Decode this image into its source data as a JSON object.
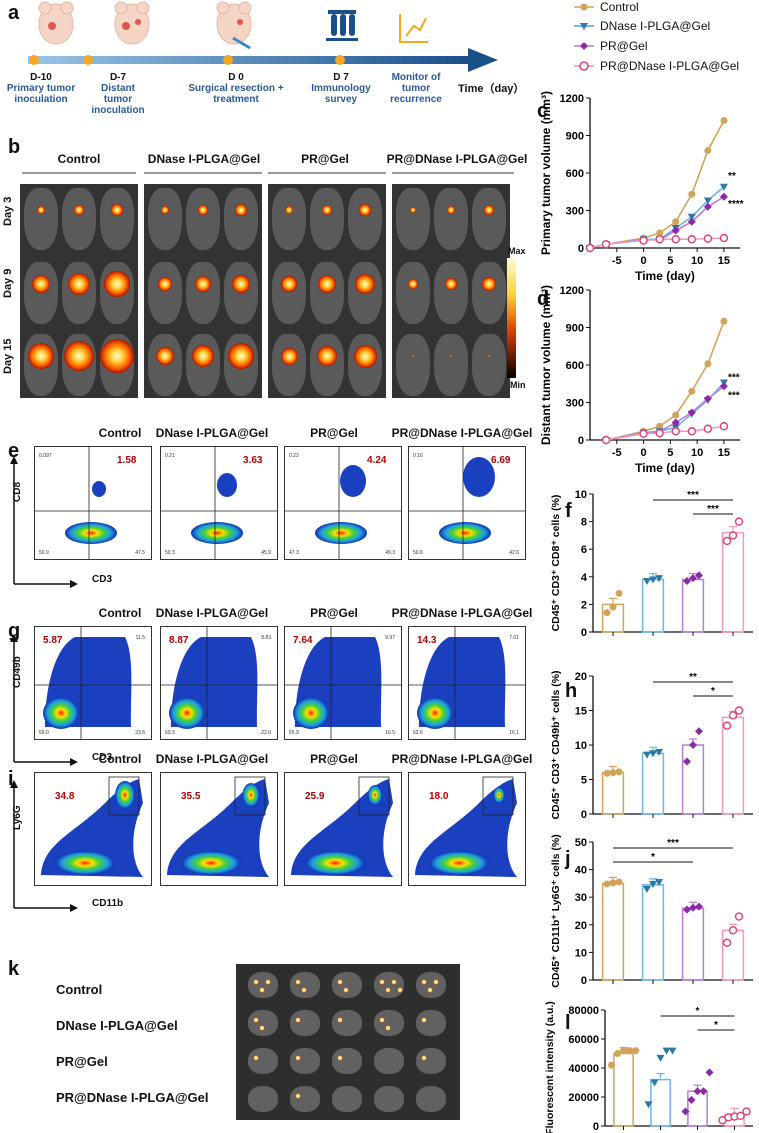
{
  "colors": {
    "control": "#d2a35a",
    "dnase": "#4aa0d8",
    "pr": "#8a2aa8",
    "combo": "#e0407a",
    "pct_red": "#b40000",
    "timeline": "#2a6aa8"
  },
  "panels": {
    "a": "a",
    "b": "b",
    "c": "c",
    "d": "d",
    "e": "e",
    "f": "f",
    "g": "g",
    "h": "h",
    "i": "i",
    "j": "j",
    "k": "k",
    "l": "l"
  },
  "timeline": {
    "axis_label": "Time（day）",
    "events": [
      {
        "day": "D-10",
        "text": "Primary tumor inoculation"
      },
      {
        "day": "D-7",
        "text": "Distant tumor inoculation"
      },
      {
        "day": "D 0",
        "text": "Surgical resection + treatment"
      },
      {
        "day": "D 7",
        "text": "Immunology survey"
      },
      {
        "day": "",
        "text": "Monitor of tumor recurrence"
      }
    ]
  },
  "legend": [
    "Control",
    "DNase I-PLGA@Gel",
    "PR@Gel",
    "PR@DNase I-PLGA@Gel"
  ],
  "groups": [
    "Control",
    "DNase I-PLGA@Gel",
    "PR@Gel",
    "PR@DNase I-PLGA@Gel"
  ],
  "panel_b": {
    "rows": [
      "Day 3",
      "Day 9",
      "Day 15"
    ],
    "scale_max": "Max",
    "scale_min": "Min"
  },
  "panel_e": {
    "pcts": [
      "1.58",
      "3.63",
      "4.24",
      "6.69"
    ],
    "quads": [
      [
        "0.097",
        "50.9",
        "47.5"
      ],
      [
        "0.21",
        "50.3",
        "45.9"
      ],
      [
        "0.22",
        "47.3",
        "49.3"
      ],
      [
        "0.16",
        "50.6",
        "42.6"
      ]
    ],
    "xlab": "CD3",
    "ylab": "CD8"
  },
  "panel_g": {
    "pcts": [
      "5.87",
      "8.87",
      "7.64",
      "14.3"
    ],
    "quads": [
      [
        "11.5",
        "59.0",
        "23.6"
      ],
      [
        "8.83",
        "60.3",
        "22.0"
      ],
      [
        "9.97",
        "65.9",
        "16.5"
      ],
      [
        "7.01",
        "62.6",
        "16.1"
      ]
    ],
    "xlab": "CD3",
    "ylab": "CD49b"
  },
  "panel_i": {
    "pcts": [
      "34.8",
      "35.5",
      "25.9",
      "18.0"
    ],
    "xlab": "CD11b",
    "ylab": "Ly6G"
  },
  "panel_k": {
    "rows": [
      "Control",
      "DNase I-PLGA@Gel",
      "PR@Gel",
      "PR@DNase I-PLGA@Gel"
    ]
  },
  "chart_data": [
    {
      "type": "line",
      "id": "c",
      "title": "",
      "xlabel": "Time (day)",
      "ylabel": "Primary tumor volume (mm³)",
      "xlim": [
        -10,
        18
      ],
      "ylim": [
        0,
        1200
      ],
      "xticks": [
        -5,
        0,
        5,
        10,
        15
      ],
      "yticks": [
        0,
        300,
        600,
        900,
        1200
      ],
      "series": [
        {
          "name": "Control",
          "x": [
            -10,
            -7,
            0,
            3,
            6,
            9,
            12,
            15
          ],
          "y": [
            0,
            30,
            80,
            120,
            210,
            430,
            780,
            1020
          ]
        },
        {
          "name": "DNase I-PLGA@Gel",
          "x": [
            -10,
            -7,
            0,
            3,
            6,
            9,
            12,
            15
          ],
          "y": [
            0,
            30,
            70,
            70,
            160,
            250,
            380,
            490
          ]
        },
        {
          "name": "PR@Gel",
          "x": [
            -10,
            -7,
            0,
            3,
            6,
            9,
            12,
            15
          ],
          "y": [
            0,
            30,
            65,
            65,
            140,
            210,
            330,
            410
          ]
        },
        {
          "name": "PR@DNase I-PLGA@Gel",
          "x": [
            -10,
            -7,
            0,
            3,
            6,
            9,
            12,
            15
          ],
          "y": [
            0,
            30,
            60,
            70,
            70,
            70,
            75,
            80
          ]
        }
      ],
      "annotations": [
        "**",
        "****"
      ]
    },
    {
      "type": "line",
      "id": "d",
      "title": "",
      "xlabel": "Time (day)",
      "ylabel": "Distant tumor volume (mm³)",
      "xlim": [
        -10,
        18
      ],
      "ylim": [
        0,
        1200
      ],
      "xticks": [
        -5,
        0,
        5,
        10,
        15
      ],
      "yticks": [
        0,
        300,
        600,
        900,
        1200
      ],
      "series": [
        {
          "name": "Control",
          "x": [
            -7,
            0,
            3,
            6,
            9,
            12,
            15
          ],
          "y": [
            0,
            70,
            110,
            200,
            390,
            610,
            950
          ]
        },
        {
          "name": "DNase I-PLGA@Gel",
          "x": [
            -7,
            0,
            3,
            6,
            9,
            12,
            15
          ],
          "y": [
            0,
            60,
            70,
            100,
            210,
            320,
            460
          ]
        },
        {
          "name": "PR@Gel",
          "x": [
            -7,
            0,
            3,
            6,
            9,
            12,
            15
          ],
          "y": [
            0,
            55,
            65,
            140,
            220,
            330,
            430
          ]
        },
        {
          "name": "PR@DNase I-PLGA@Gel",
          "x": [
            -7,
            0,
            3,
            6,
            9,
            12,
            15
          ],
          "y": [
            0,
            50,
            55,
            70,
            70,
            90,
            110
          ]
        }
      ],
      "annotations": [
        "***",
        "***"
      ]
    },
    {
      "type": "bar",
      "id": "f",
      "ylabel": "CD45⁺ CD3⁺ CD8⁺ cells (%)",
      "ylim": [
        0,
        10
      ],
      "yticks": [
        0,
        2,
        4,
        6,
        8,
        10
      ],
      "categories": [
        "Control",
        "DNase I-PLGA@Gel",
        "PR@Gel",
        "PR@DNase I-PLGA@Gel"
      ],
      "values": [
        2.0,
        3.8,
        3.8,
        7.2
      ],
      "points": [
        [
          1.4,
          1.8,
          2.8
        ],
        [
          3.7,
          3.8,
          3.9
        ],
        [
          3.7,
          3.9,
          4.1
        ],
        [
          6.6,
          7.0,
          8.0
        ]
      ],
      "sig": [
        [
          "***",
          1,
          3
        ],
        [
          "***",
          2,
          3
        ]
      ]
    },
    {
      "type": "bar",
      "id": "h",
      "ylabel": "CD45⁺ CD3⁺ CD49b⁺ cells (%)",
      "ylim": [
        0,
        20
      ],
      "yticks": [
        0,
        5,
        10,
        15,
        20
      ],
      "categories": [
        "Control",
        "DNase I-PLGA@Gel",
        "PR@Gel",
        "PR@DNase I-PLGA@Gel"
      ],
      "values": [
        6.0,
        8.8,
        10.0,
        14.0
      ],
      "points": [
        [
          5.9,
          6.0,
          6.1
        ],
        [
          8.6,
          8.8,
          9.0
        ],
        [
          7.6,
          10.0,
          12.0
        ],
        [
          12.8,
          14.3,
          15.0
        ]
      ],
      "sig": [
        [
          "**",
          1,
          3
        ],
        [
          "*",
          2,
          3
        ]
      ]
    },
    {
      "type": "bar",
      "id": "j",
      "ylabel": "CD45⁺ CD11b⁺ Ly6G⁺ cells (%)",
      "ylim": [
        0,
        50
      ],
      "yticks": [
        0,
        10,
        20,
        30,
        40,
        50
      ],
      "categories": [
        "Control",
        "DNase I-PLGA@Gel",
        "PR@Gel",
        "PR@DNase I-PLGA@Gel"
      ],
      "values": [
        35.0,
        34.5,
        26.0,
        18.0
      ],
      "points": [
        [
          34.8,
          35.2,
          35.5
        ],
        [
          33.0,
          34.8,
          35.5
        ],
        [
          25.5,
          26.2,
          26.6
        ],
        [
          13.5,
          18.0,
          23.0
        ]
      ],
      "sig": [
        [
          "***",
          0,
          3
        ],
        [
          "*",
          0,
          2
        ]
      ]
    },
    {
      "type": "bar",
      "id": "l",
      "ylabel": "Fluorescent intensity (a.u.)",
      "ylim": [
        0,
        80000
      ],
      "yticks": [
        0,
        20000,
        40000,
        60000,
        80000
      ],
      "categories": [
        "Control",
        "DNase I-PLGA@Gel",
        "PR@Gel",
        "PR@DNase I-PLGA@Gel"
      ],
      "values": [
        50000,
        32000,
        24000,
        8000
      ],
      "points": [
        [
          42000,
          50000,
          52000,
          52000,
          52000
        ],
        [
          15000,
          30000,
          47000,
          52000,
          52000
        ],
        [
          10000,
          18000,
          24000,
          24000,
          37000
        ],
        [
          4000,
          6000,
          6500,
          7000,
          10000
        ]
      ],
      "sig": [
        [
          "*",
          1,
          3
        ],
        [
          "*",
          2,
          3
        ]
      ]
    }
  ]
}
